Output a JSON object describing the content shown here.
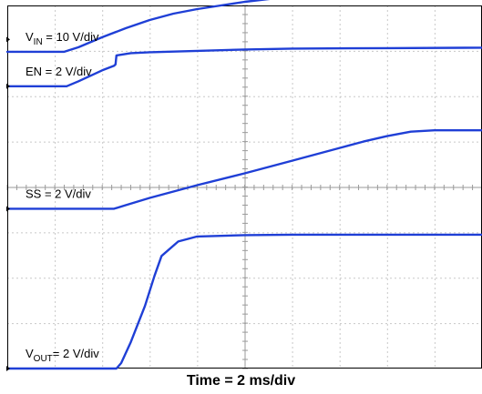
{
  "chart_data": {
    "type": "line",
    "xlabel": "Time = 2 ms/div",
    "grid": true,
    "x_divisions": 10,
    "y_divisions": 8,
    "series": [
      {
        "name": "V",
        "sub": "IN",
        "suffix": " = 10 V/div",
        "color": "#1f3fd6",
        "marker_div": 7.25,
        "x": [
          0,
          1.2,
          1.5,
          2.0,
          2.5,
          3.0,
          3.5,
          4.0,
          5.0,
          6.0,
          7.0,
          8.0,
          9.0,
          10.0
        ],
        "y": [
          6.98,
          6.98,
          7.08,
          7.3,
          7.5,
          7.68,
          7.82,
          7.92,
          8.08,
          8.2,
          8.3,
          8.37,
          8.42,
          8.44
        ]
      },
      {
        "name": "EN",
        "sub": "",
        "suffix": " = 2 V/div",
        "color": "#1f3fd6",
        "marker_div": 6.22,
        "x": [
          0,
          1.25,
          1.5,
          2.0,
          2.25,
          2.28,
          2.3,
          2.6,
          3.0,
          4.0,
          5.0,
          6.0,
          8.0,
          10.0
        ],
        "y": [
          6.22,
          6.22,
          6.33,
          6.57,
          6.67,
          6.7,
          6.9,
          6.95,
          6.97,
          7.0,
          7.03,
          7.05,
          7.06,
          7.07
        ]
      },
      {
        "name": "SS",
        "sub": "",
        "suffix": " = 2 V/div",
        "color": "#1f3fd6",
        "marker_div": 3.52,
        "x": [
          0,
          2.25,
          2.5,
          3.0,
          4.0,
          5.0,
          6.0,
          7.0,
          7.5,
          8.0,
          8.5,
          9.0,
          10.0
        ],
        "y": [
          3.52,
          3.52,
          3.6,
          3.76,
          4.04,
          4.3,
          4.58,
          4.86,
          5.0,
          5.12,
          5.22,
          5.25,
          5.25
        ]
      },
      {
        "name": "V",
        "sub": "OUT",
        "suffix": "= 2 V/div",
        "color": "#1f3fd6",
        "marker_div": 0.0,
        "x": [
          0,
          2.3,
          2.4,
          2.6,
          2.9,
          3.1,
          3.25,
          3.6,
          4.0,
          5.0,
          6.0,
          8.0,
          10.0
        ],
        "y": [
          0.0,
          0.0,
          0.12,
          0.58,
          1.38,
          2.04,
          2.48,
          2.8,
          2.91,
          2.94,
          2.95,
          2.95,
          2.95
        ]
      }
    ]
  }
}
